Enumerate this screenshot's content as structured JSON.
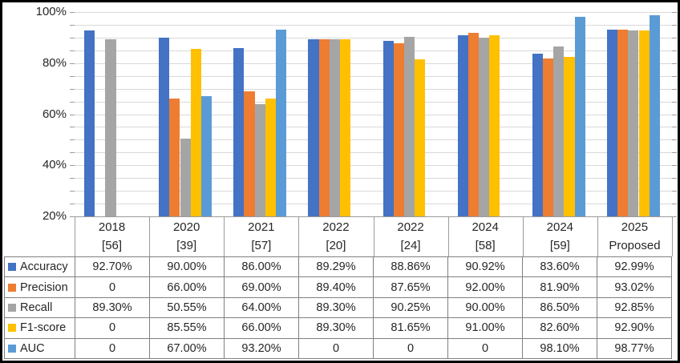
{
  "chart_data": {
    "type": "bar",
    "title": "",
    "xlabel": "",
    "ylabel": "",
    "ylim": [
      20,
      100
    ],
    "y_major_step": 20,
    "y_minor_step": 5,
    "y_tick_labels": [
      "100%",
      "80%",
      "60%",
      "40%",
      "20%"
    ],
    "grid": true,
    "legend_position": "table-left",
    "categories": [
      {
        "year": "2018",
        "ref": "[56]"
      },
      {
        "year": "2020",
        "ref": "[39]"
      },
      {
        "year": "2021",
        "ref": "[57]"
      },
      {
        "year": "2022",
        "ref": "[20]"
      },
      {
        "year": "2022",
        "ref": "[24]"
      },
      {
        "year": "2024",
        "ref": "[58]"
      },
      {
        "year": "2024",
        "ref": "[59]"
      },
      {
        "year": "2025",
        "ref": "Proposed"
      }
    ],
    "series": [
      {
        "name": "Accuracy",
        "color": "#4472C4",
        "values": [
          92.7,
          90.0,
          86.0,
          89.29,
          88.86,
          90.92,
          83.6,
          92.99
        ],
        "display": [
          "92.70%",
          "90.00%",
          "86.00%",
          "89.29%",
          "88.86%",
          "90.92%",
          "83.60%",
          "92.99%"
        ]
      },
      {
        "name": "Precision",
        "color": "#ED7D31",
        "values": [
          0,
          66.0,
          69.0,
          89.4,
          87.65,
          92.0,
          81.9,
          93.02
        ],
        "display": [
          "0",
          "66.00%",
          "69.00%",
          "89.40%",
          "87.65%",
          "92.00%",
          "81.90%",
          "93.02%"
        ]
      },
      {
        "name": "Recall",
        "color": "#A5A5A5",
        "values": [
          89.3,
          50.55,
          64.0,
          89.3,
          90.25,
          90.0,
          86.5,
          92.85
        ],
        "display": [
          "89.30%",
          "50.55%",
          "64.00%",
          "89.30%",
          "90.25%",
          "90.00%",
          "86.50%",
          "92.85%"
        ]
      },
      {
        "name": "F1-score",
        "color": "#FFC000",
        "values": [
          0,
          85.55,
          66.0,
          89.3,
          81.65,
          91.0,
          82.6,
          92.9
        ],
        "display": [
          "0",
          "85.55%",
          "66.00%",
          "89.30%",
          "81.65%",
          "91.00%",
          "82.60%",
          "92.90%"
        ]
      },
      {
        "name": "AUC",
        "color": "#5B9BD5",
        "values": [
          0,
          67.0,
          93.2,
          0,
          0,
          0,
          98.1,
          98.77
        ],
        "display": [
          "0",
          "67.00%",
          "93.20%",
          "0",
          "0",
          "0",
          "98.10%",
          "98.77%"
        ]
      }
    ]
  },
  "colors": {
    "gridline": "#d9d9d9",
    "axis": "#9b9b9b",
    "table_border": "#808080",
    "text": "#262626",
    "frame_border": "#000000",
    "background": "#ffffff"
  }
}
